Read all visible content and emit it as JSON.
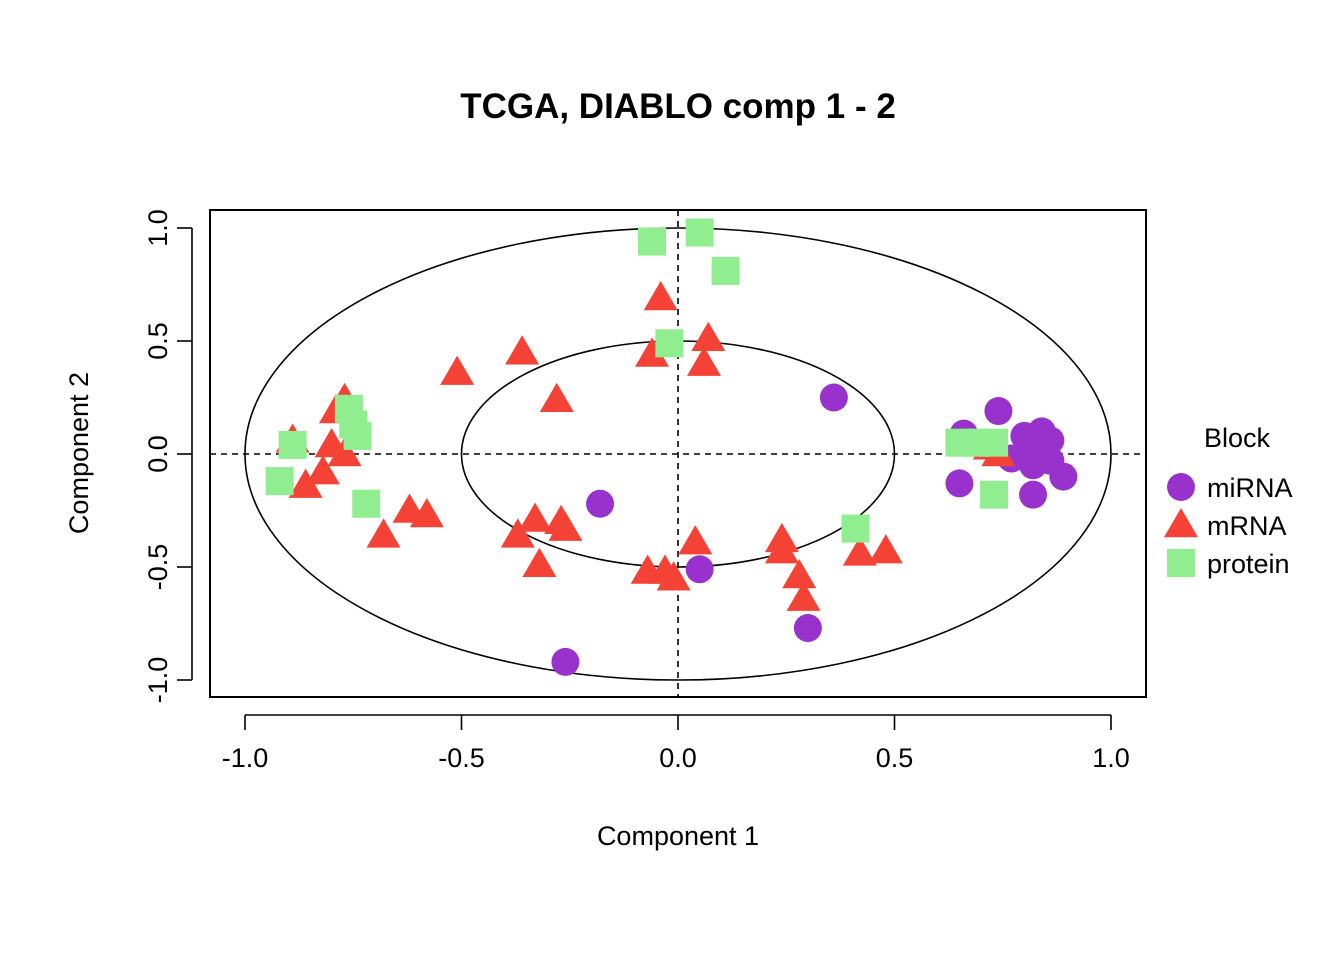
{
  "chart_data": {
    "type": "scatter",
    "title": "TCGA, DIABLO comp 1 - 2",
    "xlabel": "Component  1",
    "ylabel": "Component  2",
    "xlim": [
      -1.0,
      1.0
    ],
    "ylim": [
      -1.0,
      1.0
    ],
    "x_ticks": [
      "-1.0",
      "-0.5",
      "0.0",
      "0.5",
      "1.0"
    ],
    "y_ticks": [
      "-1.0",
      "-0.5",
      "0.0",
      "0.5",
      "1.0"
    ],
    "circles_radius": [
      0.5,
      1.0
    ],
    "reference_lines": {
      "x": 0,
      "y": 0,
      "style": "dashed"
    },
    "legend": {
      "title": "Block",
      "position": "right"
    },
    "series": [
      {
        "name": "miRNA",
        "color": "#9932CC",
        "marker": "circle",
        "points": [
          [
            0.36,
            0.25
          ],
          [
            0.74,
            0.19
          ],
          [
            0.66,
            0.09
          ],
          [
            0.65,
            -0.13
          ],
          [
            0.77,
            -0.02
          ],
          [
            0.8,
            0.08
          ],
          [
            0.84,
            0.1
          ],
          [
            0.86,
            0.06
          ],
          [
            0.82,
            0.03
          ],
          [
            0.8,
            0.0
          ],
          [
            0.82,
            -0.05
          ],
          [
            0.86,
            -0.03
          ],
          [
            0.89,
            -0.1
          ],
          [
            0.82,
            -0.18
          ],
          [
            -0.18,
            -0.22
          ],
          [
            0.05,
            -0.51
          ],
          [
            0.3,
            -0.77
          ],
          [
            -0.26,
            -0.92
          ]
        ]
      },
      {
        "name": "mRNA",
        "color": "#F44336",
        "marker": "triangle",
        "points": [
          [
            -0.04,
            0.69
          ],
          [
            0.07,
            0.51
          ],
          [
            -0.06,
            0.44
          ],
          [
            0.06,
            0.4
          ],
          [
            -0.36,
            0.45
          ],
          [
            -0.51,
            0.36
          ],
          [
            -0.28,
            0.24
          ],
          [
            -0.77,
            0.24
          ],
          [
            -0.79,
            0.19
          ],
          [
            -0.89,
            0.06
          ],
          [
            -0.8,
            0.04
          ],
          [
            -0.77,
            0.0
          ],
          [
            -0.82,
            -0.08
          ],
          [
            -0.86,
            -0.14
          ],
          [
            -0.62,
            -0.25
          ],
          [
            -0.58,
            -0.27
          ],
          [
            -0.68,
            -0.36
          ],
          [
            -0.37,
            -0.36
          ],
          [
            -0.33,
            -0.29
          ],
          [
            -0.27,
            -0.3
          ],
          [
            -0.26,
            -0.33
          ],
          [
            -0.32,
            -0.49
          ],
          [
            -0.07,
            -0.52
          ],
          [
            -0.03,
            -0.52
          ],
          [
            -0.01,
            -0.55
          ],
          [
            0.04,
            -0.39
          ],
          [
            0.24,
            -0.38
          ],
          [
            0.24,
            -0.43
          ],
          [
            0.28,
            -0.54
          ],
          [
            0.29,
            -0.64
          ],
          [
            0.42,
            -0.44
          ],
          [
            0.48,
            -0.43
          ],
          [
            0.72,
            0.03
          ],
          [
            0.74,
            0.0
          ]
        ]
      },
      {
        "name": "protein",
        "color": "#90EE90",
        "marker": "square",
        "points": [
          [
            -0.06,
            0.94
          ],
          [
            0.05,
            0.98
          ],
          [
            0.11,
            0.81
          ],
          [
            -0.02,
            0.49
          ],
          [
            -0.76,
            0.2
          ],
          [
            -0.75,
            0.13
          ],
          [
            -0.74,
            0.08
          ],
          [
            -0.89,
            0.04
          ],
          [
            -0.92,
            -0.12
          ],
          [
            -0.72,
            -0.22
          ],
          [
            0.41,
            -0.33
          ],
          [
            0.65,
            0.05
          ],
          [
            0.69,
            0.05
          ],
          [
            0.73,
            0.05
          ],
          [
            0.73,
            -0.18
          ]
        ]
      }
    ]
  }
}
